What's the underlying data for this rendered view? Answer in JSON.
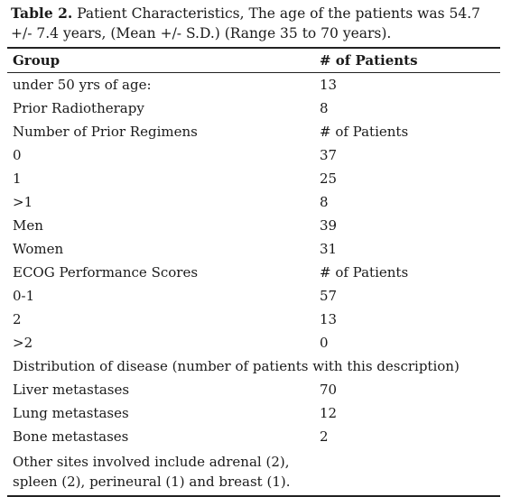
{
  "caption": {
    "label": "Table 2.",
    "text": "Patient Characteristics, The age of the patients was 54.7 +/- 7.4 years, (Mean +/- S.D.) (Range 35 to 70 years)."
  },
  "table": {
    "headers": [
      "Group",
      "# of Patients"
    ],
    "rows": [
      {
        "label": "under 50 yrs of age:",
        "value": "13"
      },
      {
        "label": "Prior Radiotherapy",
        "value": "8"
      },
      {
        "label": "Number of Prior Regimens",
        "value": "# of Patients"
      },
      {
        "label": "0",
        "value": "37"
      },
      {
        "label": "1",
        "value": "25"
      },
      {
        "label": ">1",
        "value": "8"
      },
      {
        "label": "Men",
        "value": "39"
      },
      {
        "label": "Women",
        "value": "31"
      },
      {
        "label": "ECOG Performance Scores",
        "value": "# of Patients"
      },
      {
        "label": "0-1",
        "value": "57"
      },
      {
        "label": "2",
        "value": "13"
      },
      {
        "label": ">2",
        "value": "0"
      },
      {
        "label": "Distribution of disease (number of patients with this description)"
      },
      {
        "label": "Liver metastases",
        "value": "70"
      },
      {
        "label": "Lung metastases",
        "value": "12"
      },
      {
        "label": "Bone metastases",
        "value": "2"
      },
      {
        "label": "Other sites involved include adrenal (2), spleen (2), perineural (1) and breast (1)."
      }
    ]
  }
}
